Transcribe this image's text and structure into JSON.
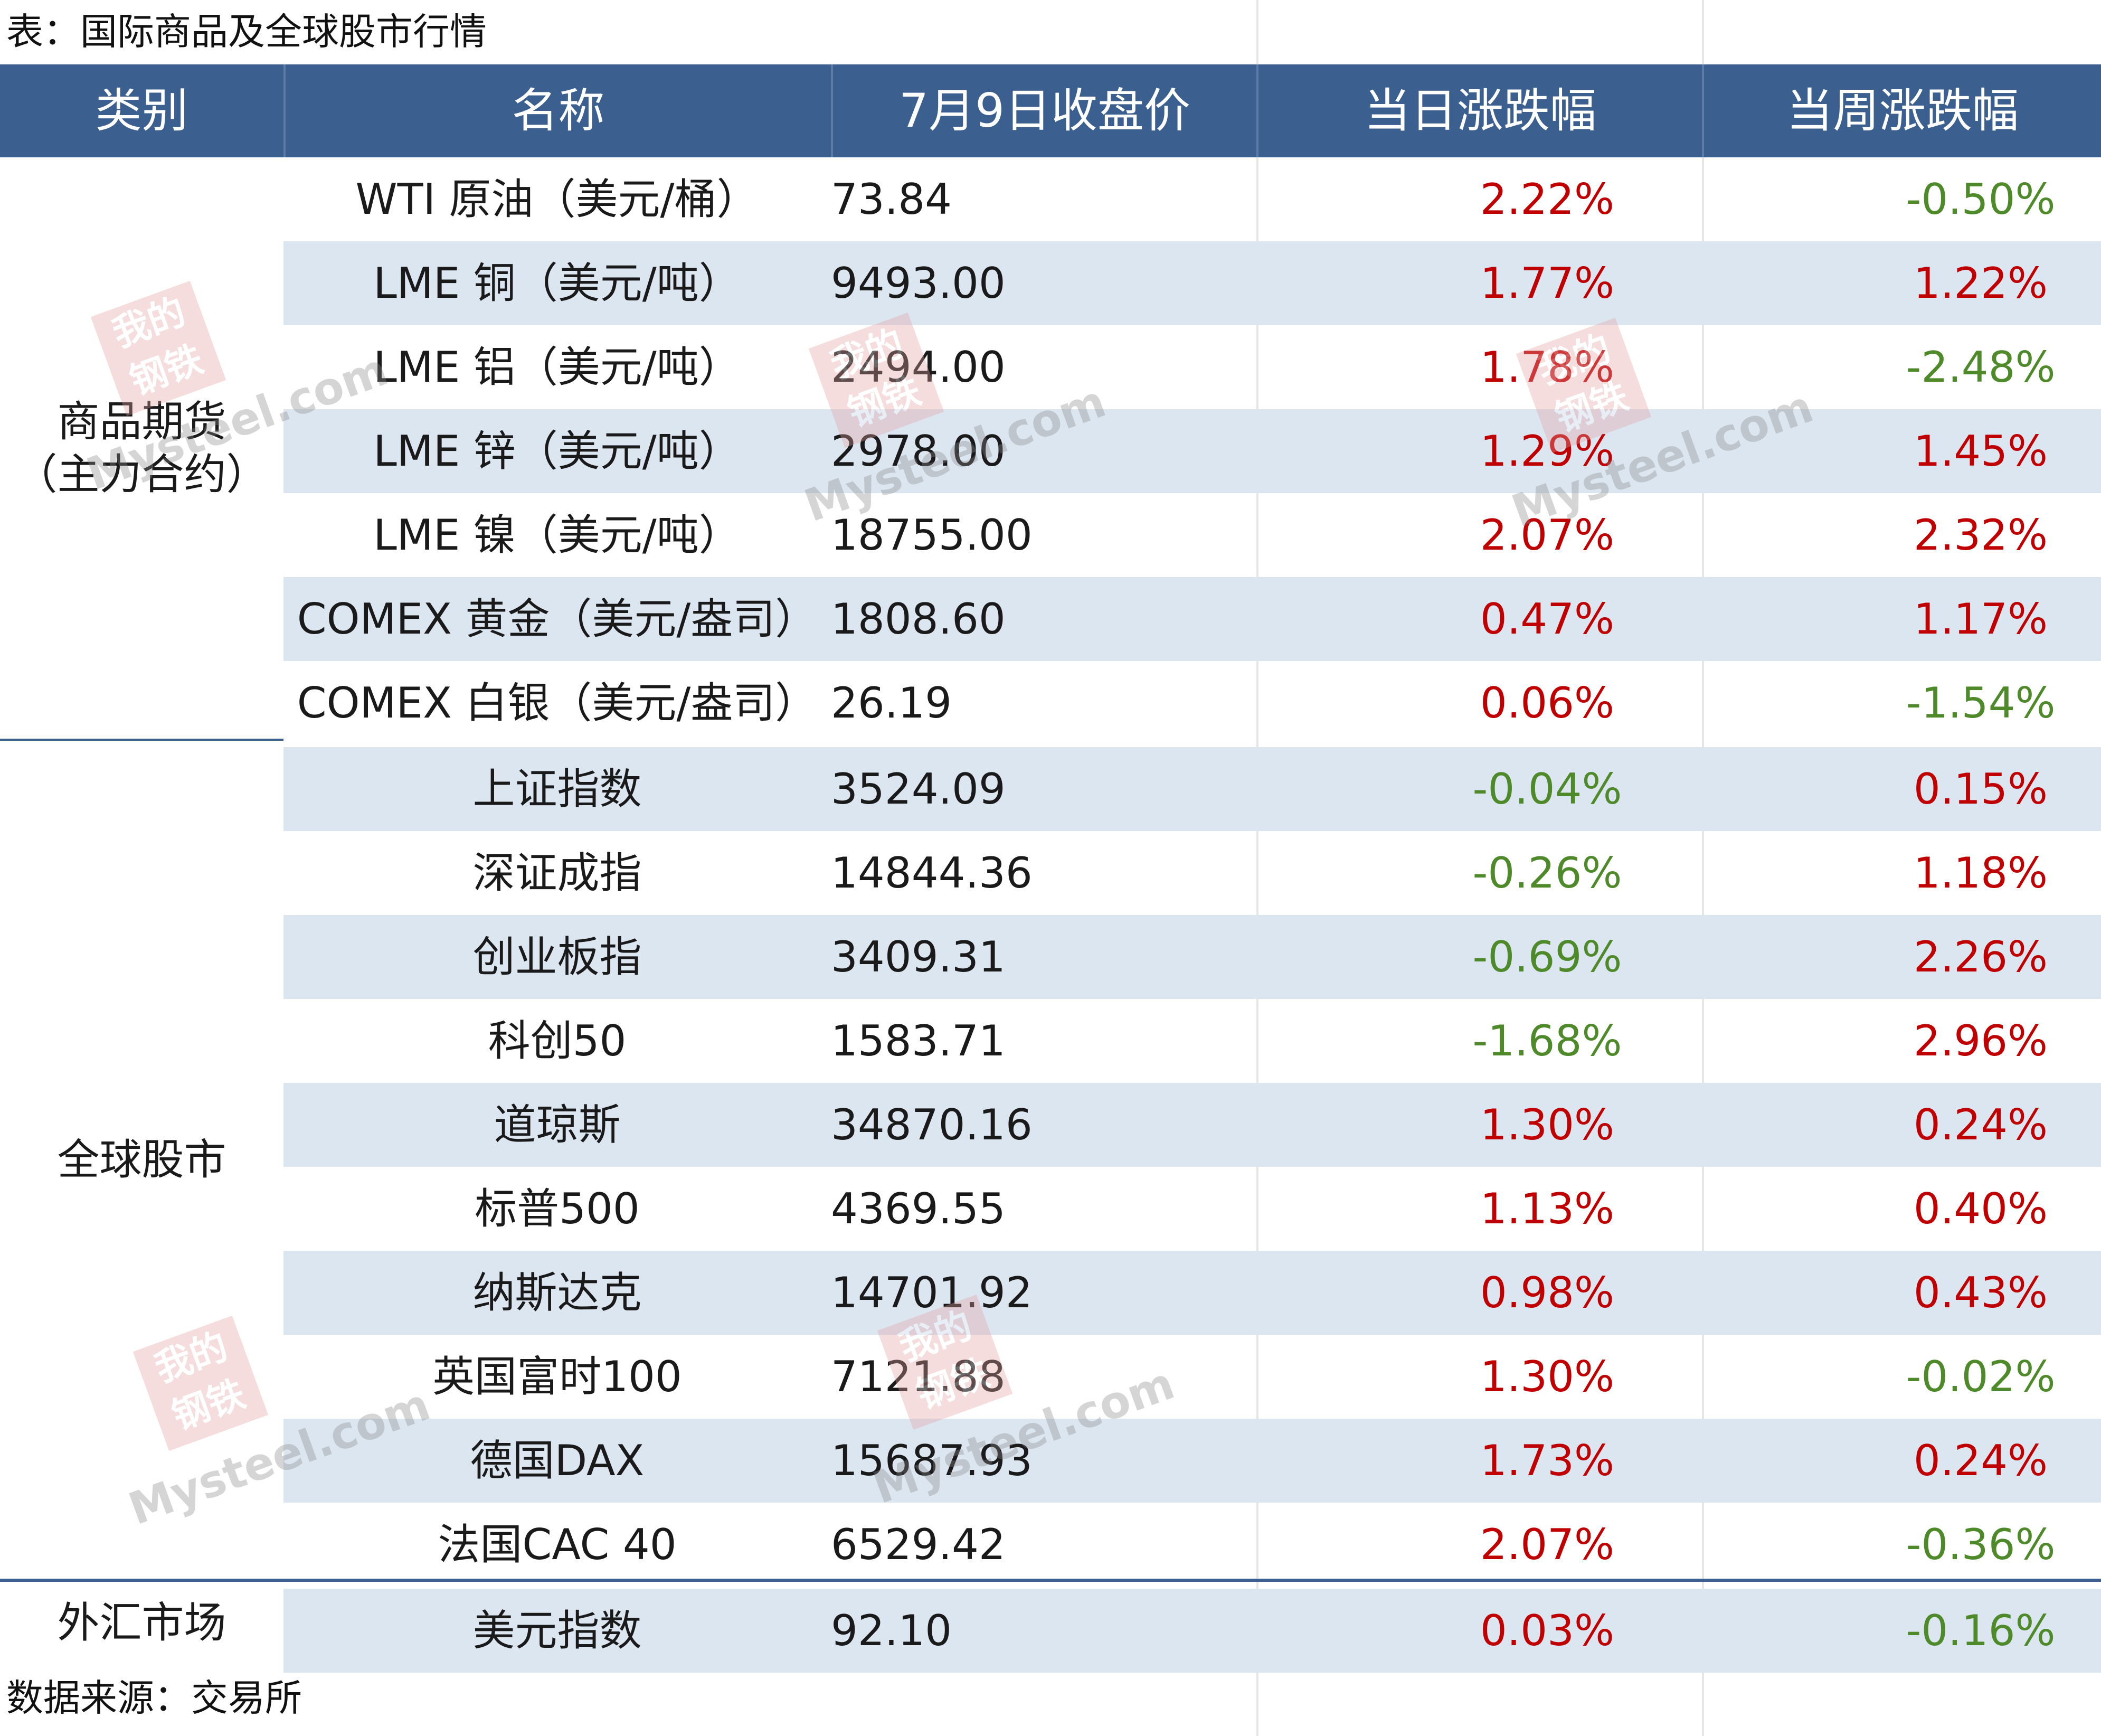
{
  "caption": "表：国际商品及全球股市行情",
  "source": "数据来源：交易所",
  "header": {
    "category": "类别",
    "name": "名称",
    "price": "7月9日收盘价",
    "day_change": "当日涨跌幅",
    "week_change": "当周涨跌幅"
  },
  "categories": {
    "commodities_line1": "商品期货",
    "commodities_line2": "（主力合约）",
    "stocks": "全球股市",
    "fx": "外汇市场"
  },
  "rows": [
    {
      "name": "WTI 原油（美元/桶）",
      "price": "73.84",
      "day": "2.22%",
      "week": "-0.50%"
    },
    {
      "name": "LME 铜（美元/吨）",
      "price": "9493.00",
      "day": "1.77%",
      "week": "1.22%"
    },
    {
      "name": "LME 铝（美元/吨）",
      "price": "2494.00",
      "day": "1.78%",
      "week": "-2.48%"
    },
    {
      "name": "LME 锌（美元/吨）",
      "price": "2978.00",
      "day": "1.29%",
      "week": "1.45%"
    },
    {
      "name": "LME 镍（美元/吨）",
      "price": "18755.00",
      "day": "2.07%",
      "week": "2.32%"
    },
    {
      "name": "COMEX 黄金（美元/盎司）",
      "price": "1808.60",
      "day": "0.47%",
      "week": "1.17%"
    },
    {
      "name": "COMEX 白银（美元/盎司）",
      "price": "26.19",
      "day": "0.06%",
      "week": "-1.54%"
    },
    {
      "name": "上证指数",
      "price": "3524.09",
      "day": "-0.04%",
      "week": "0.15%"
    },
    {
      "name": "深证成指",
      "price": "14844.36",
      "day": "-0.26%",
      "week": "1.18%"
    },
    {
      "name": "创业板指",
      "price": "3409.31",
      "day": "-0.69%",
      "week": "2.26%"
    },
    {
      "name": "科创50",
      "price": "1583.71",
      "day": "-1.68%",
      "week": "2.96%"
    },
    {
      "name": "道琼斯",
      "price": "34870.16",
      "day": "1.30%",
      "week": "0.24%"
    },
    {
      "name": "标普500",
      "price": "4369.55",
      "day": "1.13%",
      "week": "0.40%"
    },
    {
      "name": "纳斯达克",
      "price": "14701.92",
      "day": "0.98%",
      "week": "0.43%"
    },
    {
      "name": "英国富时100",
      "price": "7121.88",
      "day": "1.30%",
      "week": "-0.02%"
    },
    {
      "name": "德国DAX",
      "price": "15687.93",
      "day": "1.73%",
      "week": "0.24%"
    },
    {
      "name": "法国CAC 40",
      "price": "6529.42",
      "day": "2.07%",
      "week": "-0.36%"
    },
    {
      "name": "美元指数",
      "price": "92.10",
      "day": "0.03%",
      "week": "-0.16%"
    }
  ],
  "watermark": {
    "seal": "我的钢铁",
    "brand": "Mysteel.com"
  },
  "colors": {
    "header_bg": "#3b5f8f",
    "alt_row": "#dce6f1",
    "up": "#c00000",
    "down": "#4f8a2a"
  }
}
